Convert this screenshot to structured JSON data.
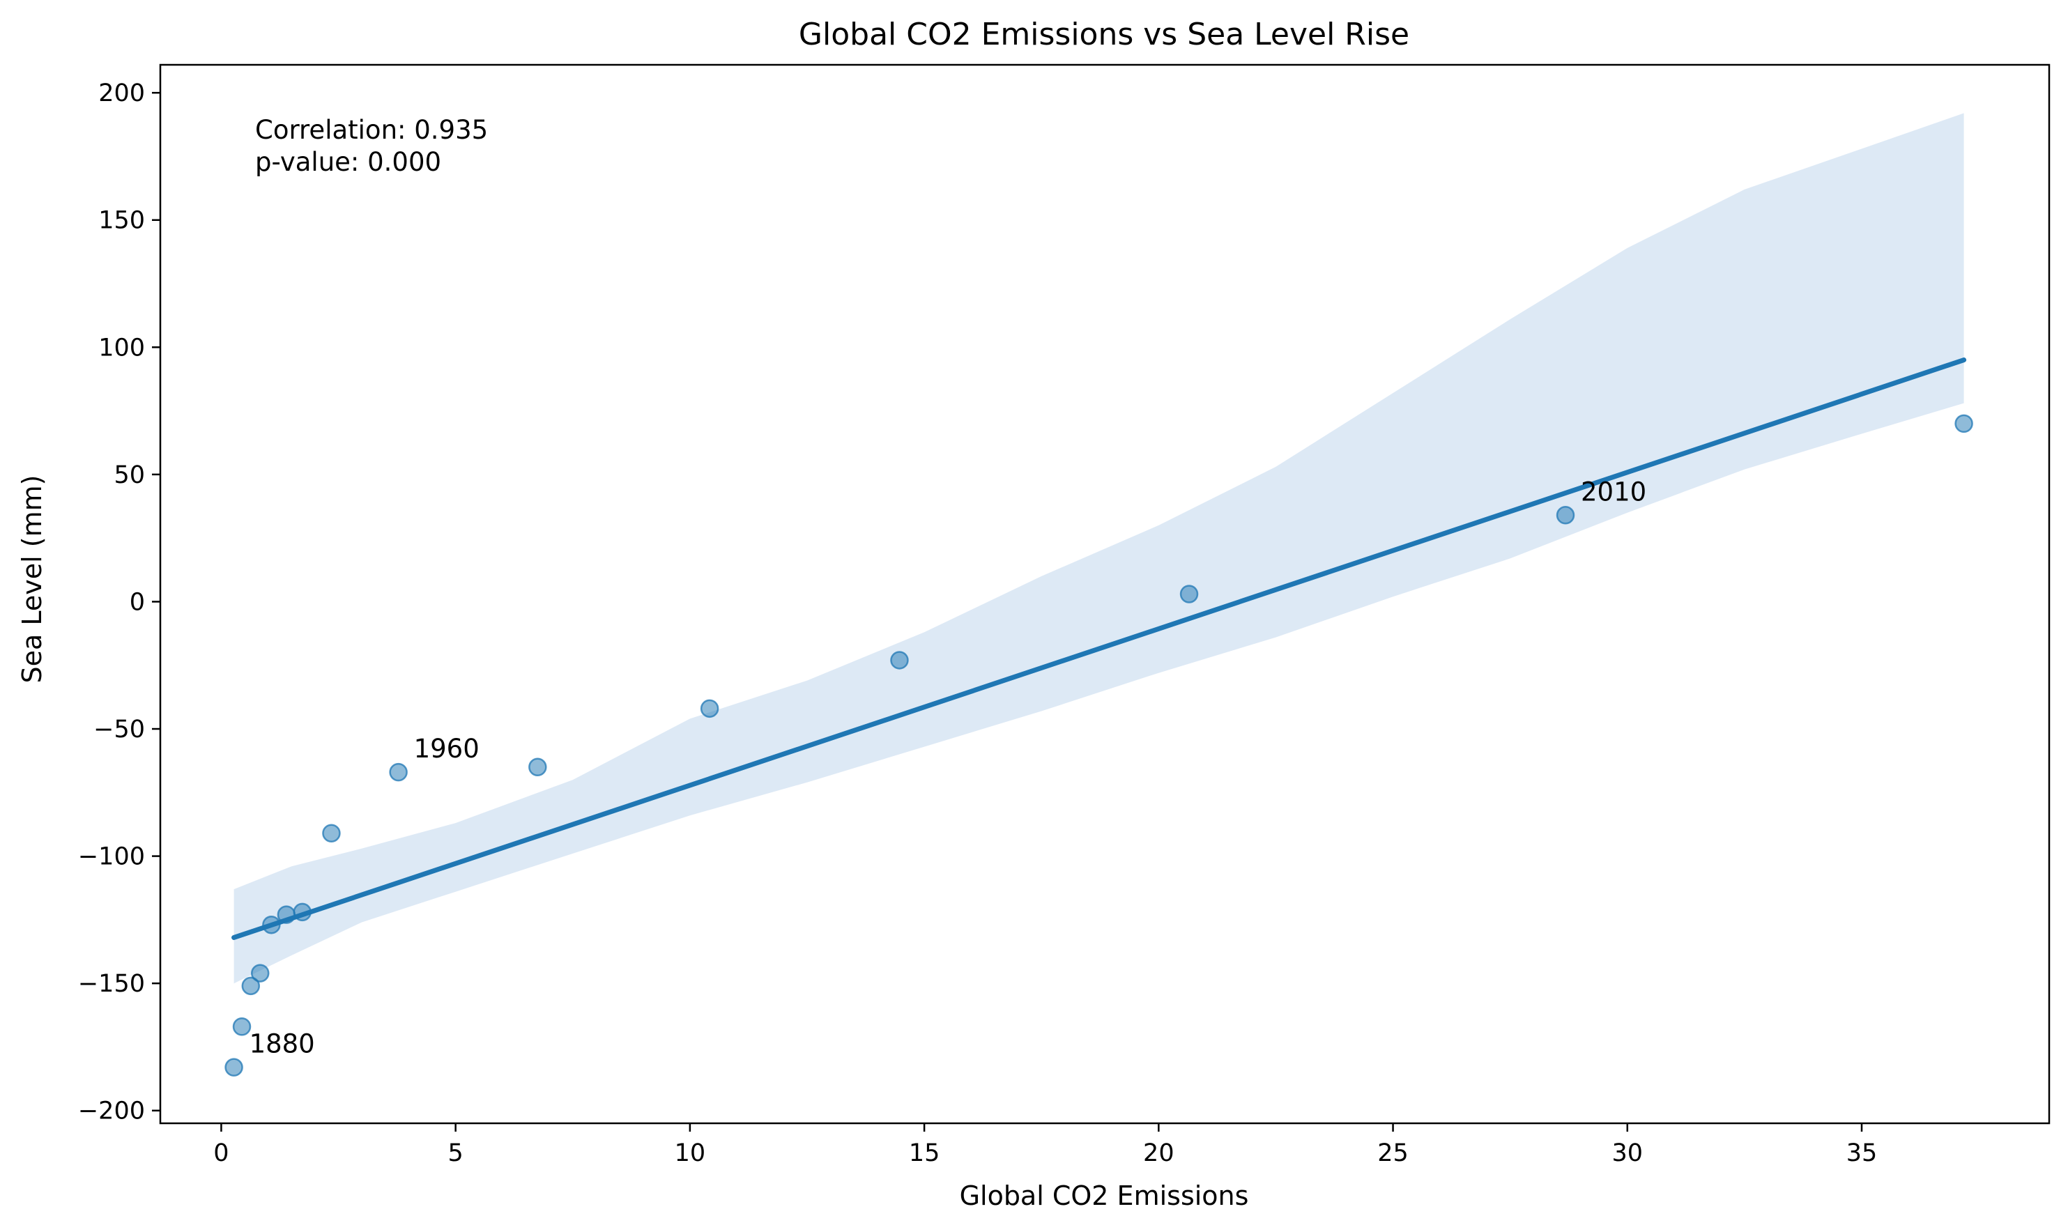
{
  "chart_data": {
    "type": "scatter",
    "title": "Global CO2 Emissions vs Sea Level Rise",
    "xlabel": "Global CO2 Emissions",
    "ylabel": "Sea Level (mm)",
    "xlim": [
      -1.3,
      39.0
    ],
    "ylim": [
      -205,
      211
    ],
    "x_ticks": [
      0,
      5,
      10,
      15,
      20,
      25,
      30,
      35
    ],
    "x_tick_labels": [
      "0",
      "5",
      "10",
      "15",
      "20",
      "25",
      "30",
      "35"
    ],
    "y_ticks": [
      -200,
      -150,
      -100,
      -50,
      0,
      50,
      100,
      150,
      200
    ],
    "y_tick_labels": [
      "−200",
      "−150",
      "−100",
      "−50",
      "0",
      "50",
      "100",
      "150",
      "200"
    ],
    "grid": false,
    "points": [
      {
        "x": 0.27,
        "y": -183
      },
      {
        "x": 0.44,
        "y": -167
      },
      {
        "x": 0.63,
        "y": -151
      },
      {
        "x": 0.83,
        "y": -146
      },
      {
        "x": 1.07,
        "y": -127
      },
      {
        "x": 1.39,
        "y": -123
      },
      {
        "x": 1.73,
        "y": -122
      },
      {
        "x": 2.35,
        "y": -91
      },
      {
        "x": 3.78,
        "y": -67
      },
      {
        "x": 6.75,
        "y": -65
      },
      {
        "x": 10.42,
        "y": -42
      },
      {
        "x": 14.47,
        "y": -23
      },
      {
        "x": 20.65,
        "y": 3
      },
      {
        "x": 28.68,
        "y": 34
      },
      {
        "x": 37.18,
        "y": 70
      }
    ],
    "regression_line": {
      "x": [
        0.27,
        37.18
      ],
      "y": [
        -132,
        95
      ]
    },
    "confidence_band": {
      "x": [
        0.27,
        1.5,
        3.0,
        5.0,
        7.5,
        10.0,
        12.5,
        15.0,
        17.5,
        20.0,
        22.5,
        25.0,
        27.5,
        30.0,
        32.5,
        35.0,
        37.18
      ],
      "upper": [
        -113,
        -104,
        -97,
        -87,
        -70,
        -46,
        -31,
        -12,
        10,
        30,
        53,
        82,
        111,
        139,
        162,
        178,
        192
      ],
      "lower": [
        -150,
        -139,
        -126,
        -114,
        -99,
        -84,
        -71,
        -57,
        -43,
        -28,
        -14,
        2,
        17,
        35,
        52,
        66,
        78
      ]
    },
    "point_color": "#1f77b4",
    "line_color": "#1f77b4",
    "band_color": "#c6dbef",
    "annotations": [
      {
        "text": "1880",
        "x": 0.27,
        "y": -183
      },
      {
        "text": "1960",
        "x": 3.78,
        "y": -67
      },
      {
        "text": "2010",
        "x": 28.68,
        "y": 34
      }
    ],
    "stats": {
      "correlation": "Correlation: 0.935",
      "p_value": "p-value: 0.000",
      "position": "top-left"
    }
  }
}
